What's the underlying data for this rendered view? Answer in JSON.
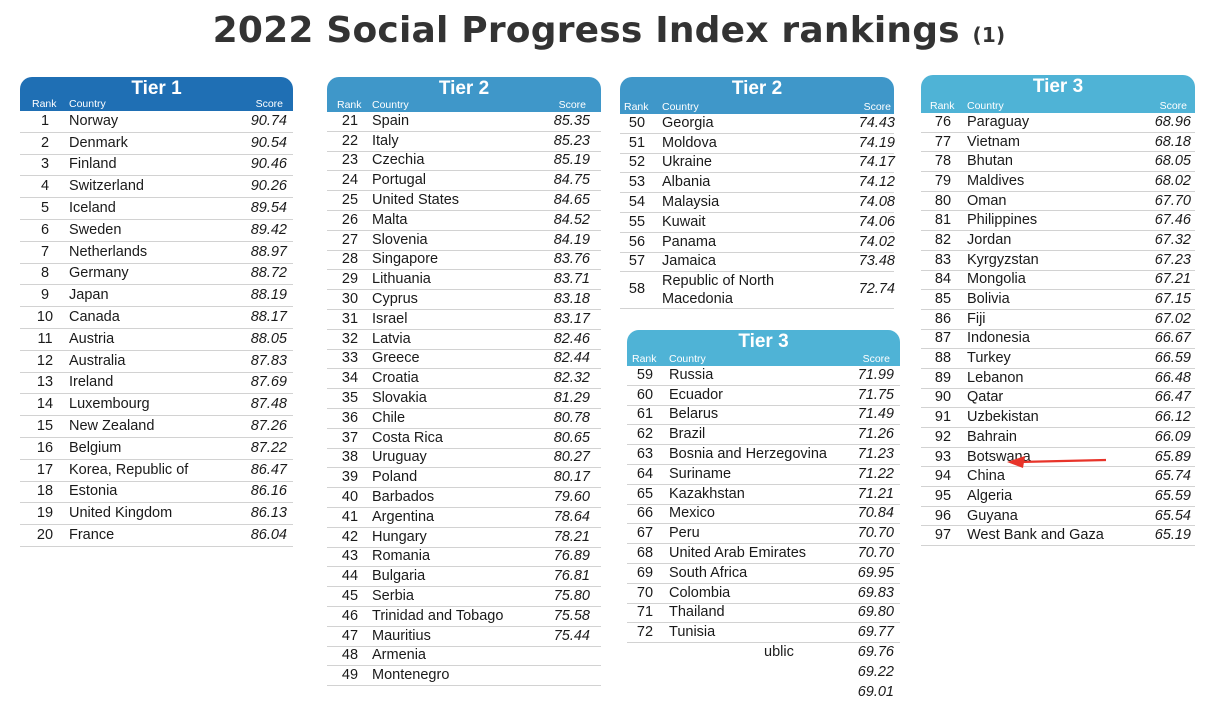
{
  "title": "2022 Social Progress Index rankings",
  "title_suffix": "(1)",
  "columns": {
    "rank": "Rank",
    "country": "Country",
    "score": "Score"
  },
  "colors": {
    "tier1": "#1f6fb4",
    "tier2": "#3f97c9",
    "tier3": "#4fb3d6",
    "arrow": "#e8342a"
  },
  "panels": [
    {
      "tier": "Tier 1",
      "rows": [
        {
          "rank": "1",
          "country": "Norway",
          "score": "90.74"
        },
        {
          "rank": "2",
          "country": "Denmark",
          "score": "90.54"
        },
        {
          "rank": "3",
          "country": "Finland",
          "score": "90.46"
        },
        {
          "rank": "4",
          "country": "Switzerland",
          "score": "90.26"
        },
        {
          "rank": "5",
          "country": "Iceland",
          "score": "89.54"
        },
        {
          "rank": "6",
          "country": "Sweden",
          "score": "89.42"
        },
        {
          "rank": "7",
          "country": "Netherlands",
          "score": "88.97"
        },
        {
          "rank": "8",
          "country": "Germany",
          "score": "88.72"
        },
        {
          "rank": "9",
          "country": "Japan",
          "score": "88.19"
        },
        {
          "rank": "10",
          "country": "Canada",
          "score": "88.17"
        },
        {
          "rank": "11",
          "country": "Austria",
          "score": "88.05"
        },
        {
          "rank": "12",
          "country": "Australia",
          "score": "87.83"
        },
        {
          "rank": "13",
          "country": "Ireland",
          "score": "87.69"
        },
        {
          "rank": "14",
          "country": "Luxembourg",
          "score": "87.48"
        },
        {
          "rank": "15",
          "country": "New Zealand",
          "score": "87.26"
        },
        {
          "rank": "16",
          "country": "Belgium",
          "score": "87.22"
        },
        {
          "rank": "17",
          "country": "Korea, Republic of",
          "score": "86.47"
        },
        {
          "rank": "18",
          "country": "Estonia",
          "score": "86.16"
        },
        {
          "rank": "19",
          "country": "United Kingdom",
          "score": "86.13"
        },
        {
          "rank": "20",
          "country": "France",
          "score": "86.04"
        }
      ]
    },
    {
      "tier": "Tier 2",
      "rows": [
        {
          "rank": "21",
          "country": "Spain",
          "score": "85.35"
        },
        {
          "rank": "22",
          "country": "Italy",
          "score": "85.23"
        },
        {
          "rank": "23",
          "country": "Czechia",
          "score": "85.19"
        },
        {
          "rank": "24",
          "country": "Portugal",
          "score": "84.75"
        },
        {
          "rank": "25",
          "country": "United States",
          "score": "84.65"
        },
        {
          "rank": "26",
          "country": "Malta",
          "score": "84.52"
        },
        {
          "rank": "27",
          "country": "Slovenia",
          "score": "84.19"
        },
        {
          "rank": "28",
          "country": "Singapore",
          "score": "83.76"
        },
        {
          "rank": "29",
          "country": "Lithuania",
          "score": "83.71"
        },
        {
          "rank": "30",
          "country": "Cyprus",
          "score": "83.18"
        },
        {
          "rank": "31",
          "country": "Israel",
          "score": "83.17"
        },
        {
          "rank": "32",
          "country": "Latvia",
          "score": "82.46"
        },
        {
          "rank": "33",
          "country": "Greece",
          "score": "82.44"
        },
        {
          "rank": "34",
          "country": "Croatia",
          "score": "82.32"
        },
        {
          "rank": "35",
          "country": "Slovakia",
          "score": "81.29"
        },
        {
          "rank": "36",
          "country": "Chile",
          "score": "80.78"
        },
        {
          "rank": "37",
          "country": "Costa Rica",
          "score": "80.65"
        },
        {
          "rank": "38",
          "country": "Uruguay",
          "score": "80.27"
        },
        {
          "rank": "39",
          "country": "Poland",
          "score": "80.17"
        },
        {
          "rank": "40",
          "country": "Barbados",
          "score": "79.60"
        },
        {
          "rank": "41",
          "country": "Argentina",
          "score": "78.64"
        },
        {
          "rank": "42",
          "country": "Hungary",
          "score": "78.21"
        },
        {
          "rank": "43",
          "country": "Romania",
          "score": "76.89"
        },
        {
          "rank": "44",
          "country": "Bulgaria",
          "score": "76.81"
        },
        {
          "rank": "45",
          "country": "Serbia",
          "score": "75.80"
        },
        {
          "rank": "46",
          "country": "Trinidad and Tobago",
          "score": "75.58"
        },
        {
          "rank": "47",
          "country": "Mauritius",
          "score": "75.44"
        },
        {
          "rank": "48",
          "country": "Armenia",
          "score": ""
        },
        {
          "rank": "49",
          "country": "Montenegro",
          "score": ""
        }
      ]
    },
    {
      "tier": "Tier 2",
      "rows": [
        {
          "rank": "50",
          "country": "Georgia",
          "score": "74.43"
        },
        {
          "rank": "51",
          "country": "Moldova",
          "score": "74.19"
        },
        {
          "rank": "52",
          "country": "Ukraine",
          "score": "74.17"
        },
        {
          "rank": "53",
          "country": "Albania",
          "score": "74.12"
        },
        {
          "rank": "54",
          "country": "Malaysia",
          "score": "74.08"
        },
        {
          "rank": "55",
          "country": "Kuwait",
          "score": "74.06"
        },
        {
          "rank": "56",
          "country": "Panama",
          "score": "74.02"
        },
        {
          "rank": "57",
          "country": "Jamaica",
          "score": "73.48"
        },
        {
          "rank": "58",
          "country": "Republic of North Macedonia",
          "score": "72.74"
        }
      ]
    },
    {
      "tier": "Tier 3",
      "rows": [
        {
          "rank": "59",
          "country": "Russia",
          "score": "71.99"
        },
        {
          "rank": "60",
          "country": "Ecuador",
          "score": "71.75"
        },
        {
          "rank": "61",
          "country": "Belarus",
          "score": "71.49"
        },
        {
          "rank": "62",
          "country": "Brazil",
          "score": "71.26"
        },
        {
          "rank": "63",
          "country": "Bosnia and Herzegovina",
          "score": "71.23"
        },
        {
          "rank": "64",
          "country": "Suriname",
          "score": "71.22"
        },
        {
          "rank": "65",
          "country": "Kazakhstan",
          "score": "71.21"
        },
        {
          "rank": "66",
          "country": "Mexico",
          "score": "70.84"
        },
        {
          "rank": "67",
          "country": "Peru",
          "score": "70.70"
        },
        {
          "rank": "68",
          "country": "United Arab Emirates",
          "score": "70.70"
        },
        {
          "rank": "69",
          "country": "South Africa",
          "score": "69.95"
        },
        {
          "rank": "70",
          "country": "Colombia",
          "score": "69.83"
        },
        {
          "rank": "71",
          "country": "Thailand",
          "score": "69.80"
        },
        {
          "rank": "72",
          "country": "Tunisia",
          "score": "69.77"
        },
        {
          "rank": "",
          "country": "",
          "score": "69.76"
        },
        {
          "rank": "",
          "country": "",
          "score": "69.22"
        },
        {
          "rank": "",
          "country": "",
          "score": "69.01"
        }
      ],
      "fragment": "ublic"
    },
    {
      "tier": "Tier 3",
      "rows": [
        {
          "rank": "76",
          "country": "Paraguay",
          "score": "68.96"
        },
        {
          "rank": "77",
          "country": "Vietnam",
          "score": "68.18"
        },
        {
          "rank": "78",
          "country": "Bhutan",
          "score": "68.05"
        },
        {
          "rank": "79",
          "country": "Maldives",
          "score": "68.02"
        },
        {
          "rank": "80",
          "country": "Oman",
          "score": "67.70"
        },
        {
          "rank": "81",
          "country": "Philippines",
          "score": "67.46"
        },
        {
          "rank": "82",
          "country": "Jordan",
          "score": "67.32"
        },
        {
          "rank": "83",
          "country": "Kyrgyzstan",
          "score": "67.23"
        },
        {
          "rank": "84",
          "country": "Mongolia",
          "score": "67.21"
        },
        {
          "rank": "85",
          "country": "Bolivia",
          "score": "67.15"
        },
        {
          "rank": "86",
          "country": "Fiji",
          "score": "67.02"
        },
        {
          "rank": "87",
          "country": "Indonesia",
          "score": "66.67"
        },
        {
          "rank": "88",
          "country": "Turkey",
          "score": "66.59"
        },
        {
          "rank": "89",
          "country": "Lebanon",
          "score": "66.48"
        },
        {
          "rank": "90",
          "country": "Qatar",
          "score": "66.47"
        },
        {
          "rank": "91",
          "country": "Uzbekistan",
          "score": "66.12"
        },
        {
          "rank": "92",
          "country": "Bahrain",
          "score": "66.09"
        },
        {
          "rank": "93",
          "country": "Botswana",
          "score": "65.89"
        },
        {
          "rank": "94",
          "country": "China",
          "score": "65.74"
        },
        {
          "rank": "95",
          "country": "Algeria",
          "score": "65.59"
        },
        {
          "rank": "96",
          "country": "Guyana",
          "score": "65.54"
        },
        {
          "rank": "97",
          "country": "West Bank and Gaza",
          "score": "65.19"
        }
      ]
    }
  ]
}
